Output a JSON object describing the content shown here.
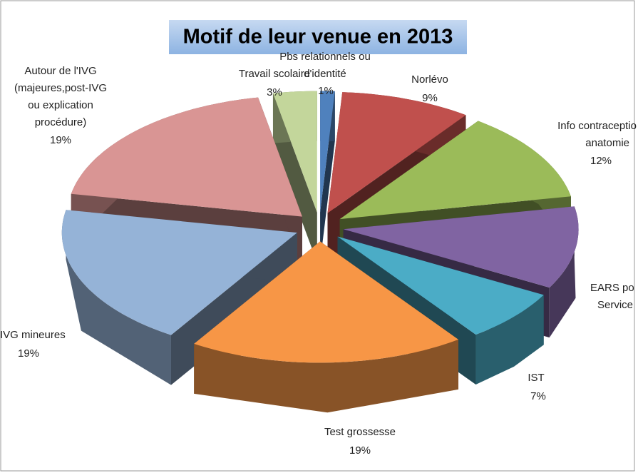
{
  "chart_data": {
    "type": "pie3d",
    "title": "Motif de leur venue en 2013",
    "categories": [
      [
        "Pbs relationnels ou",
        "d'identité"
      ],
      [
        "Norlévo"
      ],
      [
        "Info contraceptio",
        "anatomie"
      ],
      [
        "EARS po",
        "Service"
      ],
      [
        "IST"
      ],
      [
        "Test grossesse"
      ],
      [
        "IVG mineures"
      ],
      [
        "Autour de l'IVG",
        "(majeures,post-IVG",
        "ou explication",
        "procédure)"
      ],
      [
        "Travail scolaire"
      ]
    ],
    "values": [
      1,
      9,
      12,
      11,
      7,
      19,
      19,
      19,
      3
    ],
    "value_labels": [
      "1%",
      "9%",
      "12%",
      null,
      "7%",
      "19%",
      "19%",
      "19%",
      "3%"
    ],
    "colors": [
      "#4f81bd",
      "#c0504d",
      "#9bbb59",
      "#8064a2",
      "#4bacc6",
      "#f79646",
      "#95b3d7",
      "#d99594",
      "#c3d69b"
    ]
  }
}
